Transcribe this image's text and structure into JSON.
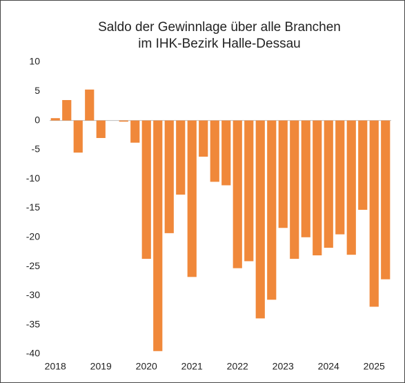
{
  "chart_data": {
    "type": "bar",
    "title": [
      "Saldo der Gewinnlage über alle Branchen",
      "im IHK-Bezirk Halle-Dessau"
    ],
    "categories": [
      "2018",
      null,
      null,
      null,
      "2019",
      null,
      null,
      null,
      "2020",
      null,
      null,
      null,
      "2021",
      null,
      null,
      null,
      "2022",
      null,
      null,
      null,
      "2023",
      null,
      null,
      null,
      "2024",
      null,
      null,
      null,
      "2025",
      null
    ],
    "values": [
      0.4,
      3.5,
      -5.5,
      5.3,
      -3,
      0,
      -0.2,
      -3.8,
      -23.7,
      -39.5,
      -19.3,
      -12.7,
      -26.8,
      -6.2,
      -10.5,
      -11.1,
      -25.3,
      -24.1,
      -33.9,
      -30.7,
      -18.4,
      -23.7,
      -20,
      -23.1,
      -21.8,
      -19.5,
      -23,
      -15.3,
      -31.9,
      -27.2
    ],
    "color": "#f0883a",
    "ylim": [
      -40,
      10
    ],
    "yticks": [
      -40,
      -35,
      -30,
      -25,
      -20,
      -15,
      -10,
      -5,
      0,
      5,
      10
    ]
  }
}
